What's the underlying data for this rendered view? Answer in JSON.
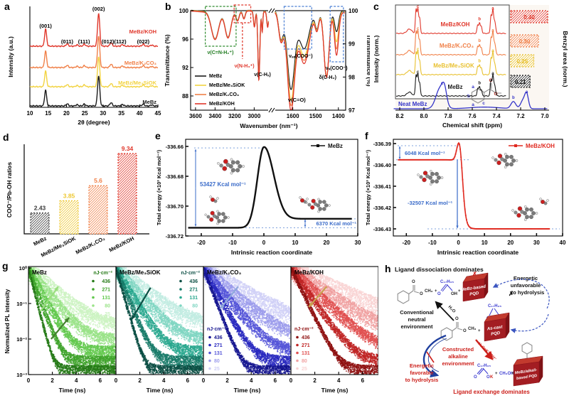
{
  "panels": {
    "a": "a",
    "b": "b",
    "c": "c",
    "d": "d",
    "e": "e",
    "f": "f",
    "g": "g",
    "h": "h"
  },
  "chart_data": [
    {
      "id": "a",
      "type": "line",
      "title": "",
      "xlabel": "2θ (degree)",
      "ylabel": "Intensity (a.u.)",
      "xlim": [
        10,
        45
      ],
      "xticks": [
        10,
        15,
        20,
        25,
        30,
        35,
        40,
        45
      ],
      "series": [
        {
          "name": "MeBz/KOH",
          "color": "#e0372b"
        },
        {
          "name": "MeBz/K₂CO₃",
          "color": "#f08048"
        },
        {
          "name": "MeBz/Me₃SiOK",
          "color": "#f2d341"
        },
        {
          "name": "MeBz",
          "color": "#1a1a1a"
        }
      ],
      "peaks": [
        [
          14.3,
          0.52,
          0.28
        ],
        [
          20.2,
          0.07,
          0.3
        ],
        [
          22.9,
          0.04,
          0.3
        ],
        [
          24.9,
          0.06,
          0.3
        ],
        [
          28.8,
          1.0,
          0.3
        ],
        [
          32.2,
          0.11,
          0.3
        ],
        [
          35.3,
          0.05,
          0.3
        ],
        [
          41.0,
          0.06,
          0.3
        ],
        [
          43.3,
          0.035,
          0.3
        ]
      ],
      "peak_labels": [
        {
          "t": "(001)",
          "x": 14.3,
          "y": 36
        },
        {
          "t": "(011)",
          "x": 20.2,
          "y": 58
        },
        {
          "t": "(111)",
          "x": 24.8,
          "y": 58
        },
        {
          "t": "(002)",
          "x": 28.8,
          "y": 12
        },
        {
          "t": "(012)(112)",
          "x": 33.0,
          "y": 58
        },
        {
          "t": "(022)",
          "x": 41.0,
          "y": 58
        }
      ]
    },
    {
      "id": "b",
      "type": "line",
      "xlabel": "Wavenumber (nm⁻¹)",
      "ylabel_left": "Transmittance (%)",
      "ylabel_right": "Transmittance (%)",
      "yticks_left": [
        100,
        96,
        92,
        88
      ],
      "yticks_right": [
        100,
        99,
        98,
        97
      ],
      "xticks_left": [
        3600,
        3400,
        3200,
        3000
      ],
      "xticks_right": [
        1600,
        1500,
        1400
      ],
      "legend": [
        {
          "name": "MeBz",
          "color": "#1a1a1a"
        },
        {
          "name": "MeBz/Me₃SiOK",
          "color": "#f2d341"
        },
        {
          "name": "MeBz/K₂CO₃",
          "color": "#f08048"
        },
        {
          "name": "MeBz/KOH",
          "color": "#e0372b"
        }
      ],
      "dips_left": [
        [
          3400,
          4.0,
          38
        ],
        [
          3268,
          3.7,
          30
        ],
        [
          3170,
          1.3,
          16
        ],
        [
          3105,
          1.1,
          13
        ],
        [
          2998,
          2.2,
          9
        ],
        [
          2952,
          9.6,
          10
        ],
        [
          2918,
          2.8,
          6
        ],
        [
          2862,
          2.2,
          9
        ]
      ],
      "dips_right": [
        [
          1652,
          0.85,
          10,
          [
            1,
            1,
            1,
            1
          ]
        ],
        [
          1608,
          2.9,
          16,
          [
            0.8,
            0.9,
            0.95,
            1
          ]
        ],
        [
          1550,
          1.55,
          22,
          [
            0.75,
            0.88,
            0.95,
            1
          ]
        ],
        [
          1494,
          0.5,
          8,
          [
            1,
            1,
            1,
            1
          ]
        ],
        [
          1452,
          2.0,
          11,
          [
            1,
            0.97,
            0.97,
            0.97
          ]
        ],
        [
          1408,
          1.3,
          9,
          [
            0.5,
            0.72,
            0.87,
            1
          ]
        ]
      ],
      "annotations": {
        "a1": {
          "t": "ν(C=N-H₂⁺)",
          "color": "#1e7a1e"
        },
        "a2": {
          "t": "ν(N-H₃⁺)",
          "color": "#e0372b"
        },
        "a3": {
          "t": "ν(C-Hₓ)",
          "color": "#000000"
        },
        "a4": {
          "t": "νₐₛ(COO⁻)",
          "color": "#000000"
        },
        "a5": {
          "t": "δ(C-H₂)",
          "color": "#000000"
        },
        "a6": {
          "t": "ν(C=O)",
          "color": "#000000"
        },
        "a7": {
          "t": "νₛ(COO⁻)",
          "color": "#000000"
        }
      },
      "box_colors": {
        "green": "#2e8b2e",
        "red": "#e0372b",
        "blue": "#4a7fd4"
      }
    },
    {
      "id": "c",
      "type": "line",
      "xlabel": "Chemical shift (ppm)",
      "ylabel_left": "Intensity (norm.)",
      "ylabel_right": "Benzyl area (norm.)",
      "xticks": [
        "8.2",
        "8.0",
        "7.8",
        "7.6",
        "7.4",
        "7.2",
        "7.0"
      ],
      "series": [
        {
          "name": "MeBz/KOH",
          "color": "#e0372b",
          "area": 0.4,
          "area_label": "0.40"
        },
        {
          "name": "MeBz/K₂CO₃",
          "color": "#f08048",
          "area": 0.3,
          "area_label": "0.30"
        },
        {
          "name": "MeBz/Me₃SiOK",
          "color": "#e8c02e",
          "area": 0.25,
          "area_label": "0.25"
        },
        {
          "name": "MeBz",
          "color": "#1a1a1a",
          "area": 0.21,
          "area_label": "0.21"
        }
      ],
      "neat": {
        "name": "Neat MeBz",
        "color": "#3434c8"
      },
      "peak_letters": [
        "c",
        "b",
        "a"
      ]
    },
    {
      "id": "d",
      "type": "bar",
      "ylabel": "COO⁻/Pb-OH ratios",
      "categories": [
        "MeBz",
        "MeBz/Me₃SiOK",
        "MeBz/K₂CO₃",
        "MeBz/KOH"
      ],
      "values": [
        2.43,
        3.85,
        5.6,
        9.34
      ],
      "labels": [
        "2.43",
        "3.85",
        "5.6",
        "9.34"
      ],
      "colors": [
        "#3a3a3a",
        "#eec832",
        "#f08048",
        "#e0372b"
      ]
    },
    {
      "id": "e",
      "type": "line",
      "xlabel": "Intrinsic reaction coordinate",
      "ylabel": "Total energy (×10³ Kcal mol⁻¹)",
      "xticks": [
        -20,
        -10,
        0,
        10,
        20,
        30
      ],
      "ytick_labels": [
        "-336.66",
        "-336.68",
        "-336.70",
        "-336.72"
      ],
      "legend": "MeBz",
      "color": "#111111",
      "annotation_left": "53427 Kcal mol⁻¹",
      "annotation_right": "6370 Kcal mol⁻¹",
      "anno_color": "#3a6bc9",
      "E_reactant": -336.7145,
      "E_ts": -336.661,
      "E_product": -336.7085
    },
    {
      "id": "f",
      "type": "line",
      "xlabel": "Intrinsic reaction coordinate",
      "ylabel": "Total energy (×10³ Kcal mol⁻¹)",
      "xticks": [
        -20,
        -10,
        0,
        10,
        20,
        30,
        40
      ],
      "ytick_labels": [
        "-336.39",
        "-336.40",
        "-336.41",
        "-336.42",
        "-336.43"
      ],
      "legend": "MeBz/KOH",
      "color": "#e0291f",
      "annotation_top": "6048 Kcal mol⁻¹",
      "annotation_mid": "-32507 Kcal mol⁻¹",
      "anno_color": "#3a6bc9",
      "E_start": -336.3976,
      "E_ts": -336.391,
      "E_product": -336.43
    },
    {
      "id": "g",
      "type": "scatter",
      "xlabel": "Time (ns)",
      "ylabel": "Normalized PL intensity",
      "xticks": [
        0,
        2,
        4,
        6
      ],
      "ytick_labels": [
        "10⁰",
        "10⁻¹",
        "10⁻²",
        "10⁻³"
      ],
      "legend_unit": "nJ·cm⁻²",
      "fluences": [
        "436",
        "271",
        "131",
        "80",
        "25"
      ],
      "subpanels": [
        {
          "title": "MeBz",
          "palette": [
            "#267a18",
            "#3fa32c",
            "#63c94e",
            "#9ae388",
            "#ccf3c2"
          ],
          "legend_pos": "tr",
          "tau_scale": 1.0,
          "arrows": [
            {
              "x1": 1.0,
              "y1": 0.06,
              "x2": 2.5,
              "y2": 0.3,
              "c": "#9ade7e"
            },
            {
              "x1": 1.9,
              "y1": 0.01,
              "x2": 3.4,
              "y2": 0.04,
              "c": "#44802e"
            }
          ]
        },
        {
          "title": "MeBz/Me₃SiOK",
          "palette": [
            "#0c4f44",
            "#177a68",
            "#2aa88f",
            "#7fd6c2",
            "#c2ece2"
          ],
          "legend_pos": "tr",
          "tau_scale": 1.12,
          "arrows": [
            {
              "x1": 2.9,
              "y1": 0.28,
              "x2": 1.3,
              "y2": 0.035,
              "c": "#0c4f44"
            }
          ]
        },
        {
          "title": "MeBz/K₂CO₃",
          "palette": [
            "#15158f",
            "#2a2ac0",
            "#5555d8",
            "#9c9cec",
            "#d0d0f7"
          ],
          "legend_pos": "ml",
          "tau_scale": 1.5,
          "arrows": [
            {
              "x1": 2.9,
              "y1": 0.3,
              "x2": 1.4,
              "y2": 0.07,
              "c": "#8fa8dc"
            }
          ]
        },
        {
          "title": "MeBz/KOH",
          "palette": [
            "#8f1212",
            "#c02525",
            "#e05050",
            "#f0a0a0",
            "#f9d3d3"
          ],
          "legend_pos": "ml",
          "tau_scale": 1.9,
          "arrows": [
            {
              "x1": 3.0,
              "y1": 0.3,
              "x2": 1.5,
              "y2": 0.08,
              "c": "#c9a250"
            }
          ]
        }
      ]
    }
  ],
  "panel_h": {
    "title": "Ligand dissociation dominates",
    "conv_env": [
      "Conventional",
      "neutral",
      "environment"
    ],
    "unfavorable": [
      "Energetic",
      "unfavorable",
      "to hydrolysis"
    ],
    "constructed": [
      "Constructed",
      "alkaline",
      "environment"
    ],
    "favorable": [
      "Energetic",
      "favorable",
      "to hydrolysis"
    ],
    "exchange": "Ligand exchange dominates",
    "h2o": "H₂O",
    "h2o_koh": "H₂O+K⁺/OH⁻",
    "methanol": "CH₃OH",
    "plus": "+",
    "cross": "✗",
    "stearyl": "C₁₇H₃₅",
    "o": "O",
    "oh": "OH",
    "ok_o": "O",
    "ok_k": "K",
    "och3": "CH₃",
    "cube1": [
      "MeBz-based",
      "PQD"
    ],
    "cube2": [
      "As-cast",
      "PQD"
    ],
    "cube3": [
      "MeBz/alkali-",
      "based PQD"
    ]
  }
}
